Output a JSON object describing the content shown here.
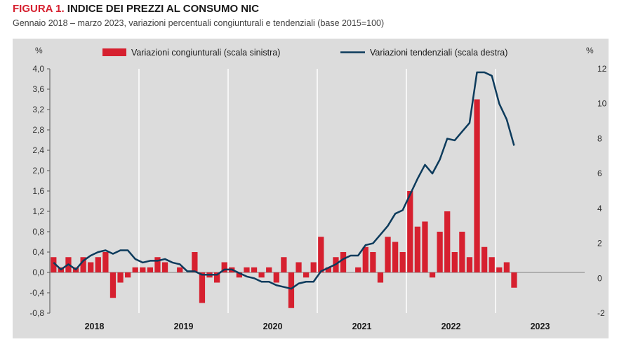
{
  "header": {
    "title_prefix": "FIGURA 1.",
    "title_text": "INDICE DEI PREZZI AL CONSUMO NIC",
    "subtitle": "Gennaio 2018 – marzo 2023, variazioni percentuali congiunturali e tendenziali (base 2015=100)"
  },
  "colors": {
    "bars": "#d6202f",
    "line": "#0d3b5c",
    "background": "#dcdcdc"
  },
  "chart_data": {
    "type": "bar",
    "grid": false,
    "legend_position": "top",
    "left_axis": {
      "unit": "%",
      "ylim": [
        -0.8,
        4.0
      ],
      "ticks": [
        "4,0",
        "3,6",
        "3,2",
        "2,8",
        "2,4",
        "2,0",
        "1,6",
        "1,2",
        "0,8",
        "0,4",
        "0,0",
        "-0,4",
        "-0,8"
      ]
    },
    "right_axis": {
      "unit": "%",
      "ylim": [
        -2,
        12
      ],
      "ticks": [
        "12",
        "10",
        "8",
        "6",
        "4",
        "2",
        "0",
        "-2"
      ]
    },
    "x_labels": [
      "2018",
      "2019",
      "2020",
      "2021",
      "2022",
      "2023"
    ],
    "series": [
      {
        "name": "Variazioni congiunturali (scala sinistra)",
        "type": "bar",
        "axis": "left",
        "values": [
          0.3,
          0.1,
          0.3,
          0.1,
          0.3,
          0.2,
          0.3,
          0.4,
          -0.5,
          -0.2,
          -0.1,
          0.1,
          0.1,
          0.1,
          0.3,
          0.2,
          0.0,
          0.1,
          0.0,
          0.4,
          -0.6,
          -0.1,
          -0.2,
          0.2,
          0.1,
          -0.1,
          0.1,
          0.1,
          -0.1,
          0.1,
          -0.2,
          0.3,
          -0.7,
          0.2,
          -0.1,
          0.2,
          0.7,
          0.1,
          0.3,
          0.4,
          0.0,
          0.1,
          0.5,
          0.4,
          -0.2,
          0.7,
          0.6,
          0.4,
          1.6,
          0.9,
          1.0,
          -0.1,
          0.8,
          1.2,
          0.4,
          0.8,
          0.3,
          3.4,
          0.5,
          0.3,
          0.1,
          0.2,
          -0.3
        ]
      },
      {
        "name": "Variazioni tendenziali (scala destra)",
        "type": "line",
        "axis": "right",
        "values": [
          0.9,
          0.5,
          0.8,
          0.5,
          1.0,
          1.3,
          1.5,
          1.6,
          1.4,
          1.6,
          1.6,
          1.1,
          0.9,
          1.0,
          1.0,
          1.1,
          0.9,
          0.8,
          0.4,
          0.4,
          0.2,
          0.2,
          0.2,
          0.5,
          0.5,
          0.3,
          0.1,
          0.0,
          -0.2,
          -0.2,
          -0.4,
          -0.5,
          -0.6,
          -0.3,
          -0.2,
          -0.2,
          0.4,
          0.6,
          0.8,
          1.1,
          1.3,
          1.3,
          1.9,
          2.0,
          2.5,
          3.0,
          3.7,
          3.9,
          4.8,
          5.7,
          6.5,
          6.0,
          6.8,
          8.0,
          7.9,
          8.4,
          8.9,
          11.8,
          11.8,
          11.6,
          10.0,
          9.1,
          7.6
        ]
      }
    ]
  }
}
